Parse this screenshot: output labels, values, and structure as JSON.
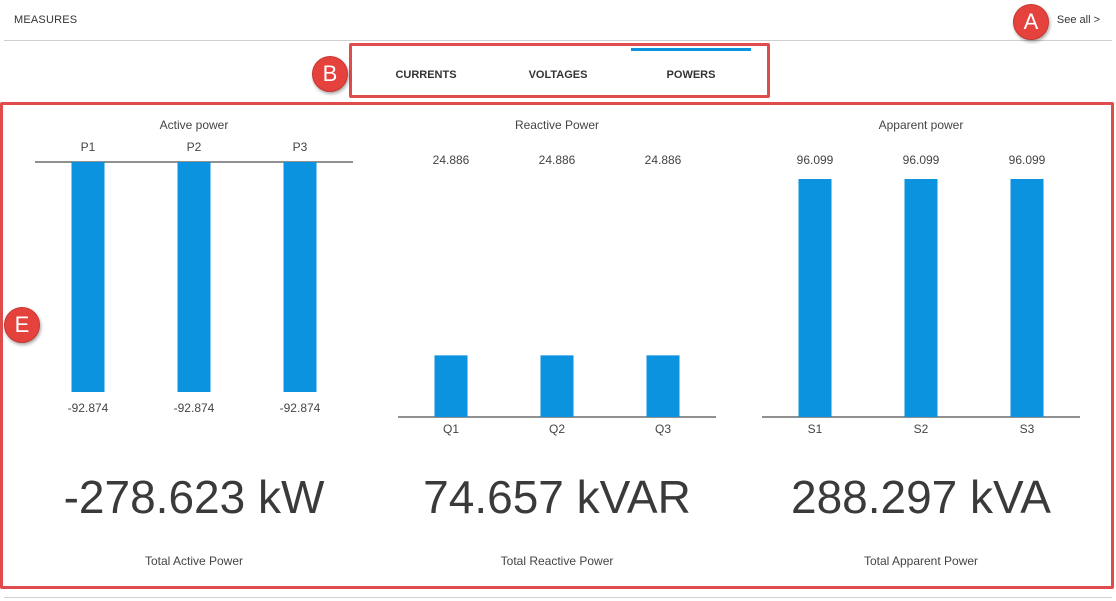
{
  "header": {
    "title": "MEASURES",
    "see_all": "See all >"
  },
  "tabs": [
    {
      "label": "CURRENTS",
      "active": false
    },
    {
      "label": "VOLTAGES",
      "active": false
    },
    {
      "label": "POWERS",
      "active": true
    }
  ],
  "annotations": {
    "a": "A",
    "b": "B",
    "e": "E"
  },
  "colors": {
    "bar": "#0b93e0",
    "accent": "#0b93e0",
    "annotation": "#e04b4b"
  },
  "chart_data": [
    {
      "type": "bar",
      "title": "Active power",
      "categories": [
        "P1",
        "P2",
        "P3"
      ],
      "values": [
        -92.874,
        -92.874,
        -92.874
      ],
      "value_labels": [
        "-92.874",
        "-92.874",
        "-92.874"
      ],
      "total": "-278.623 kW",
      "total_label": "Total Active Power"
    },
    {
      "type": "bar",
      "title": "Reactive Power",
      "categories": [
        "Q1",
        "Q2",
        "Q3"
      ],
      "values": [
        24.886,
        24.886,
        24.886
      ],
      "value_labels": [
        "24.886",
        "24.886",
        "24.886"
      ],
      "total": "74.657 kVAR",
      "total_label": "Total Reactive Power"
    },
    {
      "type": "bar",
      "title": "Apparent power",
      "categories": [
        "S1",
        "S2",
        "S3"
      ],
      "values": [
        96.099,
        96.099,
        96.099
      ],
      "value_labels": [
        "96.099",
        "96.099",
        "96.099"
      ],
      "total": "288.297 kVA",
      "total_label": "Total Apparent Power"
    }
  ]
}
